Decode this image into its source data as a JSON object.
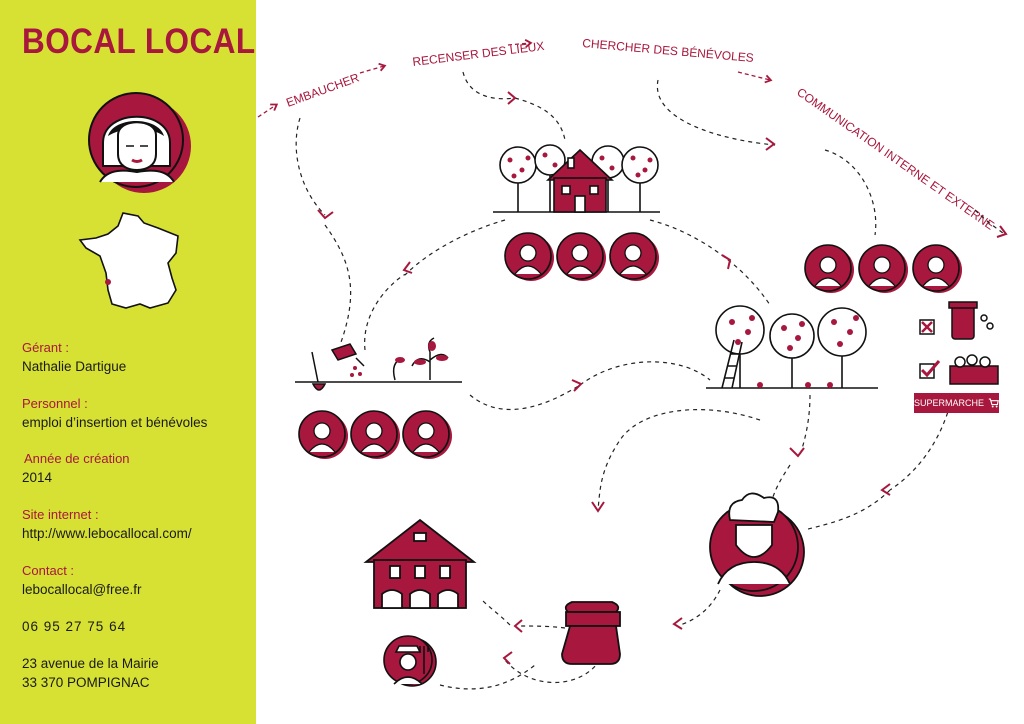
{
  "app_title": "BOCAL LOCAL",
  "info": {
    "manager_label": "Gérant :",
    "manager_value": "Nathalie Dartigue",
    "staff_label": "Personnel :",
    "staff_value": "emploi d’insertion et bénévoles",
    "year_label": "Année de création",
    "year_value": "2014",
    "website_label": "Site internet :",
    "website_value": "http://www.lebocallocal.com/",
    "contact_label": "Contact :",
    "contact_email": "lebocallocal@free.fr",
    "contact_phone": "06 95 27 75 64",
    "address_line1": "23 avenue de la Mairie",
    "address_line2": "33 370 POMPIGNAC"
  },
  "steps": {
    "hire": "EMBAUCHER",
    "inventory": "RECENSER DES LIEUX",
    "volunteers": "CHERCHER DES BÉNÉVOLES",
    "communication": "COMMUNICATION INTERNE ET EXTERNE"
  },
  "supermarket_label": "SUPERMARCHE",
  "colors": {
    "brand": "#a8173d",
    "sidebar": "#d7e134"
  },
  "icons": [
    "woman-portrait-icon",
    "france-map-icon",
    "orchard-house-icon",
    "elderly-couple-icon",
    "gardener-icon",
    "gardening-icon",
    "gardener-group-icon",
    "volunteer-group-icon",
    "apple-tree-harvest-icon",
    "trash-bin-icon",
    "crate-icon",
    "cart-icon",
    "chef-icon",
    "jam-jar-icon",
    "workshop-house-icon",
    "farmer-icon"
  ]
}
